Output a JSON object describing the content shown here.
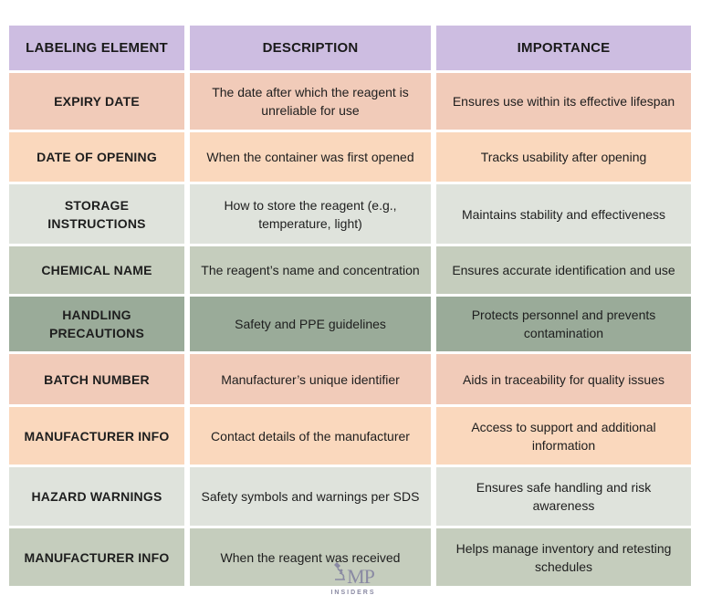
{
  "header": [
    "LABELING ELEMENT",
    "DESCRIPTION",
    "IMPORTANCE"
  ],
  "colors": {
    "header": "#cdbde1",
    "salmon": "#f1cbb9",
    "peach": "#fad8bd",
    "light_gray": "#dfe3dc",
    "sage": "#c5cdbd",
    "dark_sage": "#9aab99",
    "logo": "#8a8aa3"
  },
  "rows": [
    {
      "element": "EXPIRY DATE",
      "description": "The date after which the reagent is unreliable for use",
      "importance": "Ensures use within its effective lifespan",
      "color": "#f1cbb9"
    },
    {
      "element": "DATE OF OPENING",
      "description": "When the container was first opened",
      "importance": "Tracks usability after opening",
      "color": "#fad8bd"
    },
    {
      "element": "STORAGE INSTRUCTIONS",
      "description": "How to store the reagent (e.g., temperature, light)",
      "importance": "Maintains stability and effectiveness",
      "color": "#dfe3dc"
    },
    {
      "element": "CHEMICAL NAME",
      "description": "The reagent’s name and concentration",
      "importance": "Ensures accurate identification and use",
      "color": "#c5cdbd"
    },
    {
      "element": "HANDLING PRECAUTIONS",
      "description": "Safety and PPE guidelines",
      "importance": "Protects personnel and prevents contamination",
      "color": "#9aab99"
    },
    {
      "element": "BATCH NUMBER",
      "description": "Manufacturer’s unique identifier",
      "importance": "Aids in traceability for quality issues",
      "color": "#f1cbb9"
    },
    {
      "element": "MANUFACTURER INFO",
      "description": "Contact details of the manufacturer",
      "importance": "Access to support and additional information",
      "color": "#fad8bd"
    },
    {
      "element": "HAZARD WARNINGS",
      "description": "Safety symbols and warnings per SDS",
      "importance": "Ensures safe handling and risk awareness",
      "color": "#dfe3dc"
    },
    {
      "element": "MANUFACTURER INFO",
      "description": "When the reagent was received",
      "importance": "Helps manage inventory and retesting schedules",
      "color": "#c5cdbd"
    }
  ],
  "logo": {
    "mark": "MP",
    "subtitle": "INSIDERS",
    "icon": "flask-icon"
  }
}
